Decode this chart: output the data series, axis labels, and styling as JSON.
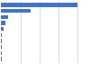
{
  "relative_lengths": [
    1.0,
    0.38,
    0.095,
    0.06,
    0.036,
    0.013,
    0.009,
    0.006,
    0.005,
    0.004
  ],
  "bar_color": "#4472c4",
  "background_color": "#ffffff",
  "grid_color": "#cccccc"
}
